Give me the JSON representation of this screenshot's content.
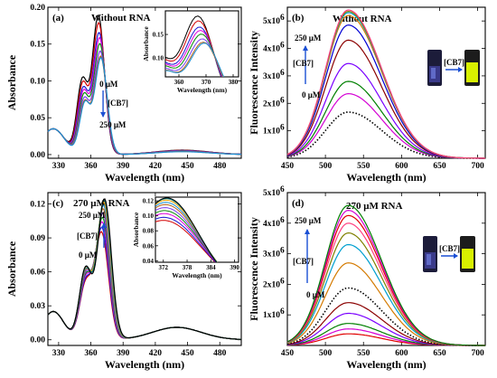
{
  "colors": {
    "curve_palette": [
      "#000000",
      "#d40000",
      "#1a1ad4",
      "#e000e0",
      "#0c8a0c",
      "#7a3df0",
      "#b5651d",
      "#1a8fd4",
      "#ffa000",
      "#008080"
    ],
    "fluor_palette": [
      "#e00000",
      "#d400d4",
      "#008000",
      "#7a00ff",
      "#8b0000",
      "#0000d4",
      "#d47a00",
      "#00a0d0",
      "#808000",
      "#ff4080"
    ],
    "arrow": "#1a4fd4",
    "vial_glow": "#d8f000"
  },
  "chart_data": [
    {
      "id": "a",
      "type": "line",
      "panel_label": "(a)",
      "title": "Without RNA",
      "xlabel": "Wavelength (nm)",
      "ylabel": "Absorbance",
      "xlim": [
        320,
        500
      ],
      "ylim": [
        -0.005,
        0.2
      ],
      "xticks": [
        330,
        360,
        390,
        420,
        450,
        480
      ],
      "yticks": [
        0.0,
        0.05,
        0.1,
        0.15,
        0.2
      ],
      "ytick_labels": [
        "0.00",
        "0.05",
        "0.10",
        "0.15",
        "0.20"
      ],
      "annotation_top": "0 μM",
      "annotation_arrow": "[CB7]",
      "annotation_bottom": "250 μM",
      "peaks": [
        0.188,
        0.178,
        0.165,
        0.158,
        0.15,
        0.14,
        0.133,
        0.131
      ],
      "inset": {
        "xlabel": "Wavelength (nm)",
        "ylabel": "Absorbance",
        "xlim": [
          355,
          382
        ],
        "ylim": [
          0.06,
          0.2
        ],
        "xticks": [
          360,
          370,
          380
        ],
        "yticks": [
          0.1,
          0.15
        ],
        "ytick_labels": [
          "0.10",
          "0.15"
        ]
      }
    },
    {
      "id": "b",
      "type": "line",
      "panel_label": "(b)",
      "title": "Without RNA",
      "xlabel": "Wavelength (nm)",
      "ylabel": "Fluorescence Intensity",
      "xlim": [
        450,
        710
      ],
      "ylim": [
        0,
        5500000
      ],
      "xticks": [
        450,
        500,
        550,
        600,
        650,
        700
      ],
      "yticks": [
        1000000,
        2000000,
        3000000,
        4000000,
        5000000
      ],
      "ytick_base": [
        "1x10",
        "2x10",
        "3x10",
        "4x10",
        "5x10"
      ],
      "ytick_exp": "6",
      "annotation_top": "250 μM",
      "annotation_arrow": "[CB7]",
      "annotation_bottom": "0 μM",
      "vial_arrow_label": "[CB7]",
      "peaks": [
        1680000,
        2350000,
        2800000,
        3450000,
        4300000,
        4850000,
        5200000,
        5300000,
        5350000,
        5400000
      ],
      "dotted_index": 0
    },
    {
      "id": "c",
      "type": "line",
      "panel_label": "(c)",
      "title": "270 μM RNA",
      "xlabel": "Wavelength (nm)",
      "ylabel": "Absorbance",
      "xlim": [
        320,
        500
      ],
      "ylim": [
        -0.005,
        0.13
      ],
      "xticks": [
        330,
        360,
        390,
        420,
        450,
        480
      ],
      "yticks": [
        0.0,
        0.03,
        0.06,
        0.09,
        0.12
      ],
      "ytick_labels": [
        "0.00",
        "0.03",
        "0.06",
        "0.09",
        "0.12"
      ],
      "annotation_top": "250 μM",
      "annotation_arrow": "[CB7]",
      "annotation_bottom": "0 μM",
      "peaks": [
        0.094,
        0.098,
        0.103,
        0.107,
        0.111,
        0.115,
        0.118,
        0.121,
        0.123,
        0.124
      ],
      "inset": {
        "xlabel": "Wavelength (nm)",
        "ylabel": "Absorbance",
        "xlim": [
          370,
          391
        ],
        "ylim": [
          0.038,
          0.125
        ],
        "xticks": [
          372,
          378,
          384,
          390
        ],
        "yticks": [
          0.04,
          0.06,
          0.08,
          0.1,
          0.12
        ],
        "ytick_labels": [
          "0.04",
          "0.06",
          "0.08",
          "0.10",
          "0.12"
        ]
      }
    },
    {
      "id": "d",
      "type": "line",
      "panel_label": "(d)",
      "title": "270 μM RNA",
      "xlabel": "Wavelength (nm)",
      "ylabel": "Fluorescence Intensity",
      "xlim": [
        450,
        710
      ],
      "ylim": [
        0,
        5000000
      ],
      "xticks": [
        450,
        500,
        550,
        600,
        650,
        700
      ],
      "yticks": [
        1000000,
        2000000,
        3000000,
        4000000,
        5000000
      ],
      "ytick_base": [
        "1x10",
        "2x10",
        "3x10",
        "4x10",
        "5x10"
      ],
      "ytick_exp": "6",
      "annotation_top": "250 μM",
      "annotation_arrow": "[CB7]",
      "annotation_bottom": "0 μM",
      "vial_arrow_label": "[CB7]",
      "peaks": [
        380000,
        540000,
        720000,
        1050000,
        1400000,
        1880000,
        2700000,
        3300000,
        3680000,
        4000000,
        4250000,
        4420000,
        4580000
      ],
      "dotted_index": 5
    }
  ]
}
